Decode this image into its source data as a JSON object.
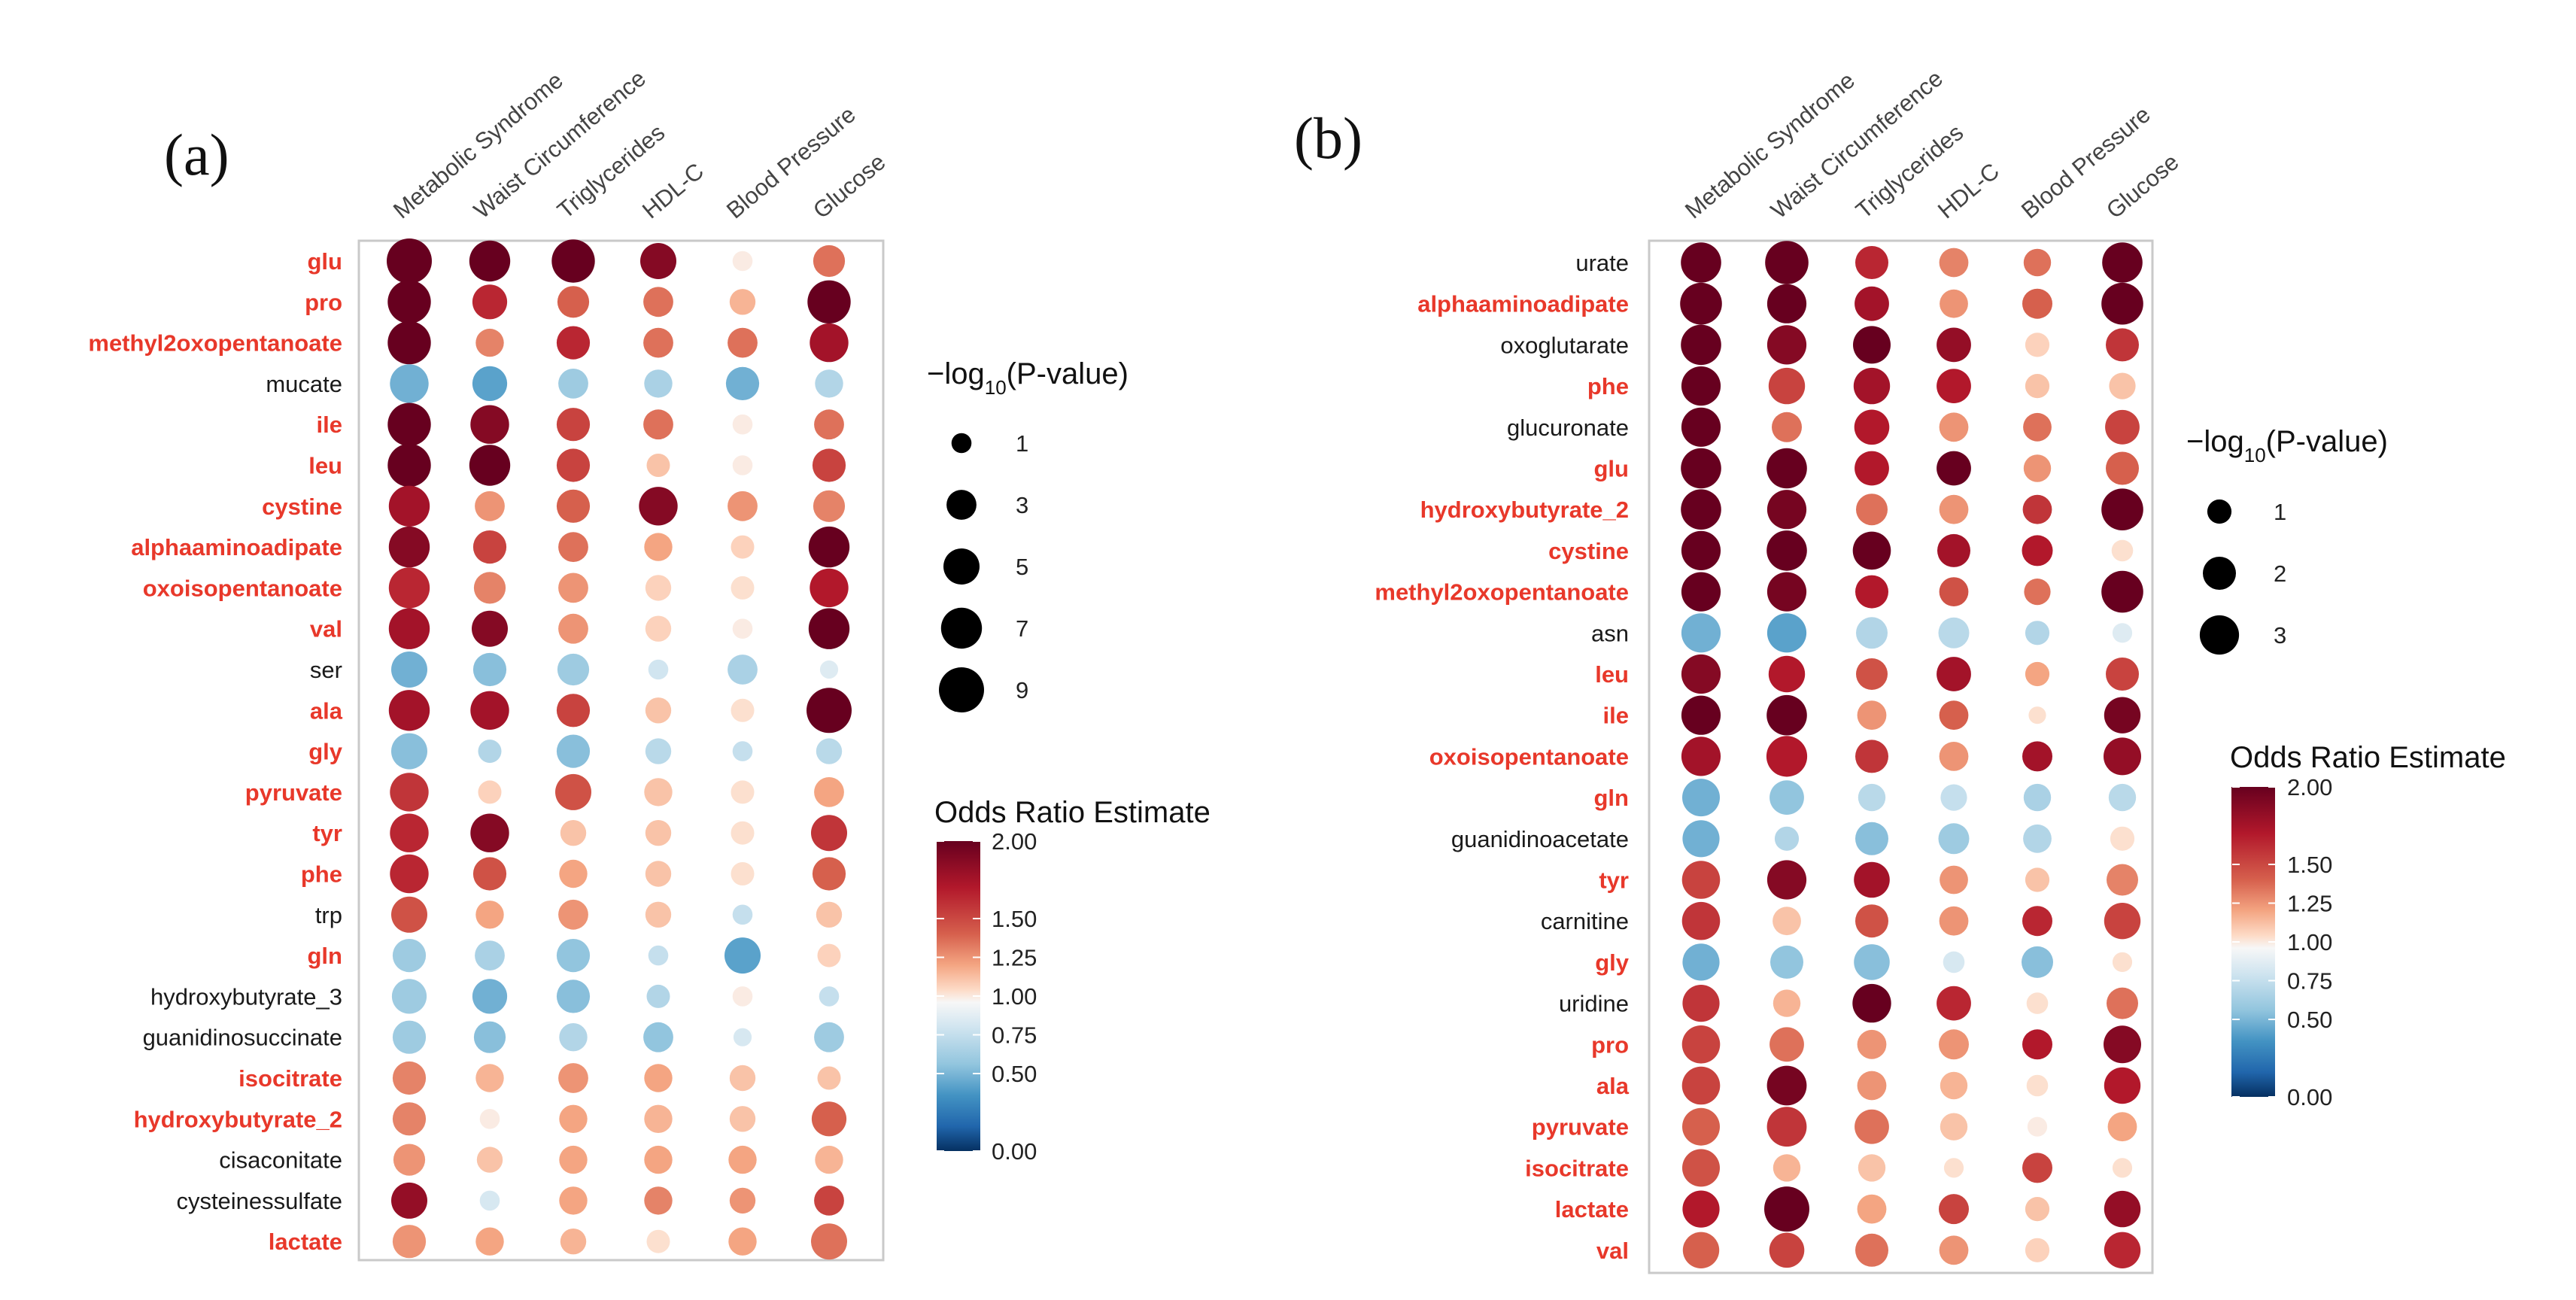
{
  "chart_data": [
    {
      "type": "dotplot",
      "panel": "(a)",
      "columns": [
        "Metabolic Syndrome",
        "Waist Circumference",
        "Triglycerides",
        "HDL-C",
        "Blood Pressure",
        "Glucose"
      ],
      "rows": [
        {
          "name": "glu",
          "bold": true,
          "or": [
            2.0,
            2.0,
            2.0,
            1.9,
            1.05,
            1.45
          ],
          "p": [
            9,
            7,
            8,
            5,
            1,
            3.5
          ]
        },
        {
          "name": "pro",
          "bold": true,
          "or": [
            2.0,
            1.7,
            1.5,
            1.45,
            1.25,
            2.0
          ],
          "p": [
            8,
            4.5,
            3.5,
            3,
            2,
            8
          ]
        },
        {
          "name": "methyl2oxopentanoate",
          "bold": true,
          "or": [
            2.0,
            1.4,
            1.7,
            1.45,
            1.45,
            1.8
          ],
          "p": [
            8,
            2.5,
            4,
            3,
            3,
            6
          ]
        },
        {
          "name": "mucate",
          "bold": false,
          "or": [
            0.65,
            0.6,
            0.75,
            0.78,
            0.65,
            0.8
          ],
          "p": [
            6,
            4.5,
            3,
            2.5,
            4,
            2.5
          ]
        },
        {
          "name": "ile",
          "bold": true,
          "or": [
            2.0,
            1.9,
            1.6,
            1.45,
            1.05,
            1.45
          ],
          "p": [
            8,
            6,
            4,
            3,
            1,
            3
          ]
        },
        {
          "name": "leu",
          "bold": true,
          "or": [
            2.0,
            2.0,
            1.6,
            1.2,
            1.05,
            1.6
          ],
          "p": [
            8,
            7,
            4,
            1.5,
            1,
            4
          ]
        },
        {
          "name": "cystine",
          "bold": true,
          "or": [
            1.8,
            1.35,
            1.5,
            1.9,
            1.35,
            1.4
          ],
          "p": [
            7,
            3,
            4,
            6,
            3,
            3.5
          ]
        },
        {
          "name": "alphaaminoadipate",
          "bold": true,
          "or": [
            1.9,
            1.6,
            1.45,
            1.3,
            1.15,
            2.0
          ],
          "p": [
            7,
            4,
            3,
            2.5,
            1.5,
            7
          ]
        },
        {
          "name": "oxoisopentanoate",
          "bold": true,
          "or": [
            1.7,
            1.4,
            1.35,
            1.15,
            1.1,
            1.75
          ],
          "p": [
            7,
            3.5,
            3,
            2,
            1.5,
            6
          ]
        },
        {
          "name": "val",
          "bold": true,
          "or": [
            1.8,
            1.9,
            1.35,
            1.15,
            1.05,
            2.0
          ],
          "p": [
            7,
            5,
            3,
            2,
            1,
            7
          ]
        },
        {
          "name": "ser",
          "bold": false,
          "or": [
            0.65,
            0.7,
            0.75,
            0.88,
            0.78,
            0.92
          ],
          "p": [
            5,
            4,
            3.5,
            1,
            3,
            0.8
          ]
        },
        {
          "name": "ala",
          "bold": true,
          "or": [
            1.8,
            1.8,
            1.6,
            1.2,
            1.1,
            2.0
          ],
          "p": [
            7,
            6,
            4,
            2,
            1.5,
            9
          ]
        },
        {
          "name": "gly",
          "bold": true,
          "or": [
            0.7,
            0.8,
            0.7,
            0.82,
            0.85,
            0.82
          ],
          "p": [
            5,
            1.5,
            4,
            2,
            1,
            2
          ]
        },
        {
          "name": "pyruvate",
          "bold": true,
          "or": [
            1.65,
            1.15,
            1.55,
            1.2,
            1.1,
            1.3
          ],
          "p": [
            6,
            1.5,
            5,
            2.5,
            1.5,
            3
          ]
        },
        {
          "name": "tyr",
          "bold": true,
          "or": [
            1.7,
            1.9,
            1.2,
            1.2,
            1.1,
            1.65
          ],
          "p": [
            6,
            6,
            2,
            2,
            1.5,
            5
          ]
        },
        {
          "name": "phe",
          "bold": true,
          "or": [
            1.7,
            1.55,
            1.3,
            1.2,
            1.1,
            1.5
          ],
          "p": [
            6,
            4,
            2.5,
            2,
            1.5,
            4
          ]
        },
        {
          "name": "trp",
          "bold": false,
          "or": [
            1.55,
            1.3,
            1.35,
            1.2,
            0.85,
            1.2
          ],
          "p": [
            5,
            2.5,
            3,
            2,
            1,
            2
          ]
        },
        {
          "name": "gln",
          "bold": true,
          "or": [
            0.75,
            0.78,
            0.72,
            0.85,
            0.6,
            1.15
          ],
          "p": [
            4,
            3,
            4,
            1,
            5,
            1.5
          ]
        },
        {
          "name": "hydroxybutyrate_3",
          "bold": false,
          "or": [
            0.75,
            0.65,
            0.7,
            0.8,
            1.05,
            0.85
          ],
          "p": [
            4.5,
            4.5,
            4,
            1.5,
            1,
            1
          ]
        },
        {
          "name": "guanidinosuccinate",
          "bold": false,
          "or": [
            0.75,
            0.7,
            0.8,
            0.72,
            0.9,
            0.75
          ],
          "p": [
            4,
            3.5,
            2.5,
            3,
            0.8,
            3
          ]
        },
        {
          "name": "isocitrate",
          "bold": true,
          "or": [
            1.4,
            1.25,
            1.35,
            1.3,
            1.2,
            1.2
          ],
          "p": [
            4,
            2.5,
            3,
            2.5,
            2,
            1.5
          ]
        },
        {
          "name": "hydroxybutyrate_2",
          "bold": true,
          "or": [
            1.4,
            1.05,
            1.3,
            1.25,
            1.2,
            1.5
          ],
          "p": [
            4,
            1,
            2.5,
            2.5,
            2,
            4.5
          ]
        },
        {
          "name": "cisaconitate",
          "bold": false,
          "or": [
            1.35,
            1.2,
            1.3,
            1.3,
            1.3,
            1.25
          ],
          "p": [
            3.5,
            2,
            2.5,
            2.5,
            2.5,
            2.5
          ]
        },
        {
          "name": "cysteinessulfate",
          "bold": false,
          "or": [
            1.85,
            0.9,
            1.3,
            1.4,
            1.35,
            1.6
          ],
          "p": [
            5,
            1,
            2.5,
            2.5,
            2,
            3
          ]
        },
        {
          "name": "lactate",
          "bold": true,
          "or": [
            1.35,
            1.3,
            1.25,
            1.1,
            1.3,
            1.45
          ],
          "p": [
            4,
            2.5,
            2,
            1.5,
            2.5,
            5
          ]
        }
      ],
      "size_legend": {
        "title_prefix": "−log",
        "title_sub": "10",
        "title_suffix": "(P-value)",
        "levels": [
          1,
          3,
          5,
          7,
          9
        ]
      },
      "color_legend": {
        "title": "Odds Ratio Estimate",
        "ticks": [
          2.0,
          1.5,
          1.25,
          1.0,
          0.75,
          0.5,
          0.0
        ],
        "tick_labels": [
          "2.00",
          "1.50",
          "1.25",
          "1.00",
          "0.75",
          "0.50",
          "0.00"
        ]
      }
    },
    {
      "type": "dotplot",
      "panel": "(b)",
      "columns": [
        "Metabolic Syndrome",
        "Waist Circumference",
        "Triglycerides",
        "HDL-C",
        "Blood Pressure",
        "Glucose"
      ],
      "rows": [
        {
          "name": "urate",
          "bold": false,
          "or": [
            2.0,
            2.0,
            1.7,
            1.4,
            1.45,
            2.0
          ],
          "p": [
            3.2,
            3.8,
            2,
            1.5,
            1.3,
            3.2
          ]
        },
        {
          "name": "alphaaminoadipate",
          "bold": true,
          "or": [
            2.0,
            2.0,
            1.8,
            1.35,
            1.5,
            2.0
          ],
          "p": [
            3.5,
            3,
            2.2,
            1.4,
            1.6,
            3.5
          ]
        },
        {
          "name": "oxoglutarate",
          "bold": false,
          "or": [
            2.0,
            1.9,
            2.0,
            1.85,
            1.15,
            1.65
          ],
          "p": [
            3.2,
            3,
            2.7,
            2.2,
            1,
            2
          ]
        },
        {
          "name": "phe",
          "bold": true,
          "or": [
            2.0,
            1.6,
            1.8,
            1.75,
            1.2,
            1.2
          ],
          "p": [
            3,
            2.5,
            2.5,
            2.2,
            1,
            1.2
          ]
        },
        {
          "name": "glucuronate",
          "bold": false,
          "or": [
            2.0,
            1.45,
            1.75,
            1.35,
            1.45,
            1.6
          ],
          "p": [
            3,
            1.6,
            2.3,
            1.5,
            1.4,
            2.2
          ]
        },
        {
          "name": "glu",
          "bold": true,
          "or": [
            2.0,
            2.0,
            1.75,
            2.0,
            1.35,
            1.5
          ],
          "p": [
            3.2,
            3.2,
            2.2,
            2.2,
            1.3,
            2
          ]
        },
        {
          "name": "hydroxybutyrate_2",
          "bold": true,
          "or": [
            2.0,
            1.95,
            1.45,
            1.35,
            1.65,
            2.0
          ],
          "p": [
            3.2,
            3,
            1.8,
            1.5,
            1.5,
            3.5
          ]
        },
        {
          "name": "cystine",
          "bold": true,
          "or": [
            2.0,
            2.0,
            2.0,
            1.8,
            1.75,
            1.1
          ],
          "p": [
            3,
            3.2,
            2.8,
            2,
            1.7,
            0.8
          ]
        },
        {
          "name": "methyl2oxopentanoate",
          "bold": true,
          "or": [
            2.0,
            1.95,
            1.75,
            1.55,
            1.45,
            2.0
          ],
          "p": [
            3,
            3,
            2,
            1.5,
            1.2,
            3.5
          ]
        },
        {
          "name": "asn",
          "bold": false,
          "or": [
            0.65,
            0.6,
            0.8,
            0.82,
            0.8,
            0.92
          ],
          "p": [
            3,
            3,
            1.8,
            1.7,
            1,
            0.7
          ]
        },
        {
          "name": "leu",
          "bold": true,
          "or": [
            1.9,
            1.75,
            1.55,
            1.8,
            1.3,
            1.6
          ],
          "p": [
            3,
            2.5,
            1.8,
            2.2,
            1,
            2
          ]
        },
        {
          "name": "ile",
          "bold": true,
          "or": [
            2.0,
            2.0,
            1.35,
            1.5,
            1.1,
            1.95
          ],
          "p": [
            3,
            3.2,
            1.5,
            1.5,
            0.6,
            2.5
          ]
        },
        {
          "name": "oxoisopentanoate",
          "bold": true,
          "or": [
            1.8,
            1.75,
            1.65,
            1.35,
            1.8,
            1.85
          ],
          "p": [
            3,
            3.3,
            2,
            1.5,
            1.6,
            2.7
          ]
        },
        {
          "name": "gln",
          "bold": true,
          "or": [
            0.65,
            0.72,
            0.82,
            0.85,
            0.78,
            0.82
          ],
          "p": [
            2.7,
            2.2,
            1.3,
            1.2,
            1.3,
            1.3
          ]
        },
        {
          "name": "guanidinoacetate",
          "bold": false,
          "or": [
            0.65,
            0.8,
            0.7,
            0.75,
            0.8,
            1.1
          ],
          "p": [
            2.6,
            1,
            2,
            1.7,
            1.4,
            1
          ]
        },
        {
          "name": "tyr",
          "bold": true,
          "or": [
            1.6,
            1.9,
            1.8,
            1.35,
            1.2,
            1.4
          ],
          "p": [
            2.8,
            3,
            2.4,
            1.4,
            1,
            1.8
          ]
        },
        {
          "name": "carnitine",
          "bold": false,
          "or": [
            1.65,
            1.2,
            1.55,
            1.35,
            1.7,
            1.6
          ],
          "p": [
            2.8,
            1.4,
            2,
            1.5,
            1.6,
            2.5
          ]
        },
        {
          "name": "gly",
          "bold": true,
          "or": [
            0.65,
            0.72,
            0.7,
            0.9,
            0.7,
            1.1
          ],
          "p": [
            2.6,
            2,
            2.4,
            0.8,
            1.8,
            0.7
          ]
        },
        {
          "name": "uridine",
          "bold": false,
          "or": [
            1.65,
            1.25,
            2.0,
            1.7,
            1.1,
            1.45
          ],
          "p": [
            2.6,
            1.3,
            2.9,
            2.2,
            0.8,
            1.8
          ]
        },
        {
          "name": "pro",
          "bold": true,
          "or": [
            1.6,
            1.45,
            1.35,
            1.35,
            1.75,
            1.9
          ],
          "p": [
            2.8,
            2.2,
            1.5,
            1.6,
            1.6,
            2.7
          ]
        },
        {
          "name": "ala",
          "bold": true,
          "or": [
            1.6,
            1.95,
            1.35,
            1.25,
            1.1,
            1.75
          ],
          "p": [
            2.8,
            3.1,
            1.5,
            1.3,
            0.8,
            2.5
          ]
        },
        {
          "name": "pyruvate",
          "bold": true,
          "or": [
            1.5,
            1.65,
            1.45,
            1.2,
            1.05,
            1.3
          ],
          "p": [
            2.7,
            3.1,
            2.2,
            1.3,
            0.7,
            1.5
          ]
        },
        {
          "name": "isocitrate",
          "bold": true,
          "or": [
            1.55,
            1.25,
            1.2,
            1.1,
            1.6,
            1.1
          ],
          "p": [
            2.7,
            1.3,
            1.3,
            0.7,
            1.6,
            0.7
          ]
        },
        {
          "name": "lactate",
          "bold": true,
          "or": [
            1.75,
            2.0,
            1.3,
            1.6,
            1.2,
            1.85
          ],
          "p": [
            2.6,
            4.2,
            1.5,
            1.6,
            1,
            2.5
          ]
        },
        {
          "name": "val",
          "bold": true,
          "or": [
            1.5,
            1.6,
            1.45,
            1.35,
            1.15,
            1.7
          ],
          "p": [
            2.5,
            2.3,
            2,
            1.5,
            1,
            2.5
          ]
        }
      ],
      "size_legend": {
        "title_prefix": "−log",
        "title_sub": "10",
        "title_suffix": "(P-value)",
        "levels": [
          1,
          2,
          3
        ]
      },
      "color_legend": {
        "title": "Odds Ratio Estimate",
        "ticks": [
          2.0,
          1.5,
          1.25,
          1.0,
          0.75,
          0.5,
          0.0
        ],
        "tick_labels": [
          "2.00",
          "1.50",
          "1.25",
          "1.00",
          "0.75",
          "0.50",
          "0.00"
        ]
      }
    }
  ]
}
